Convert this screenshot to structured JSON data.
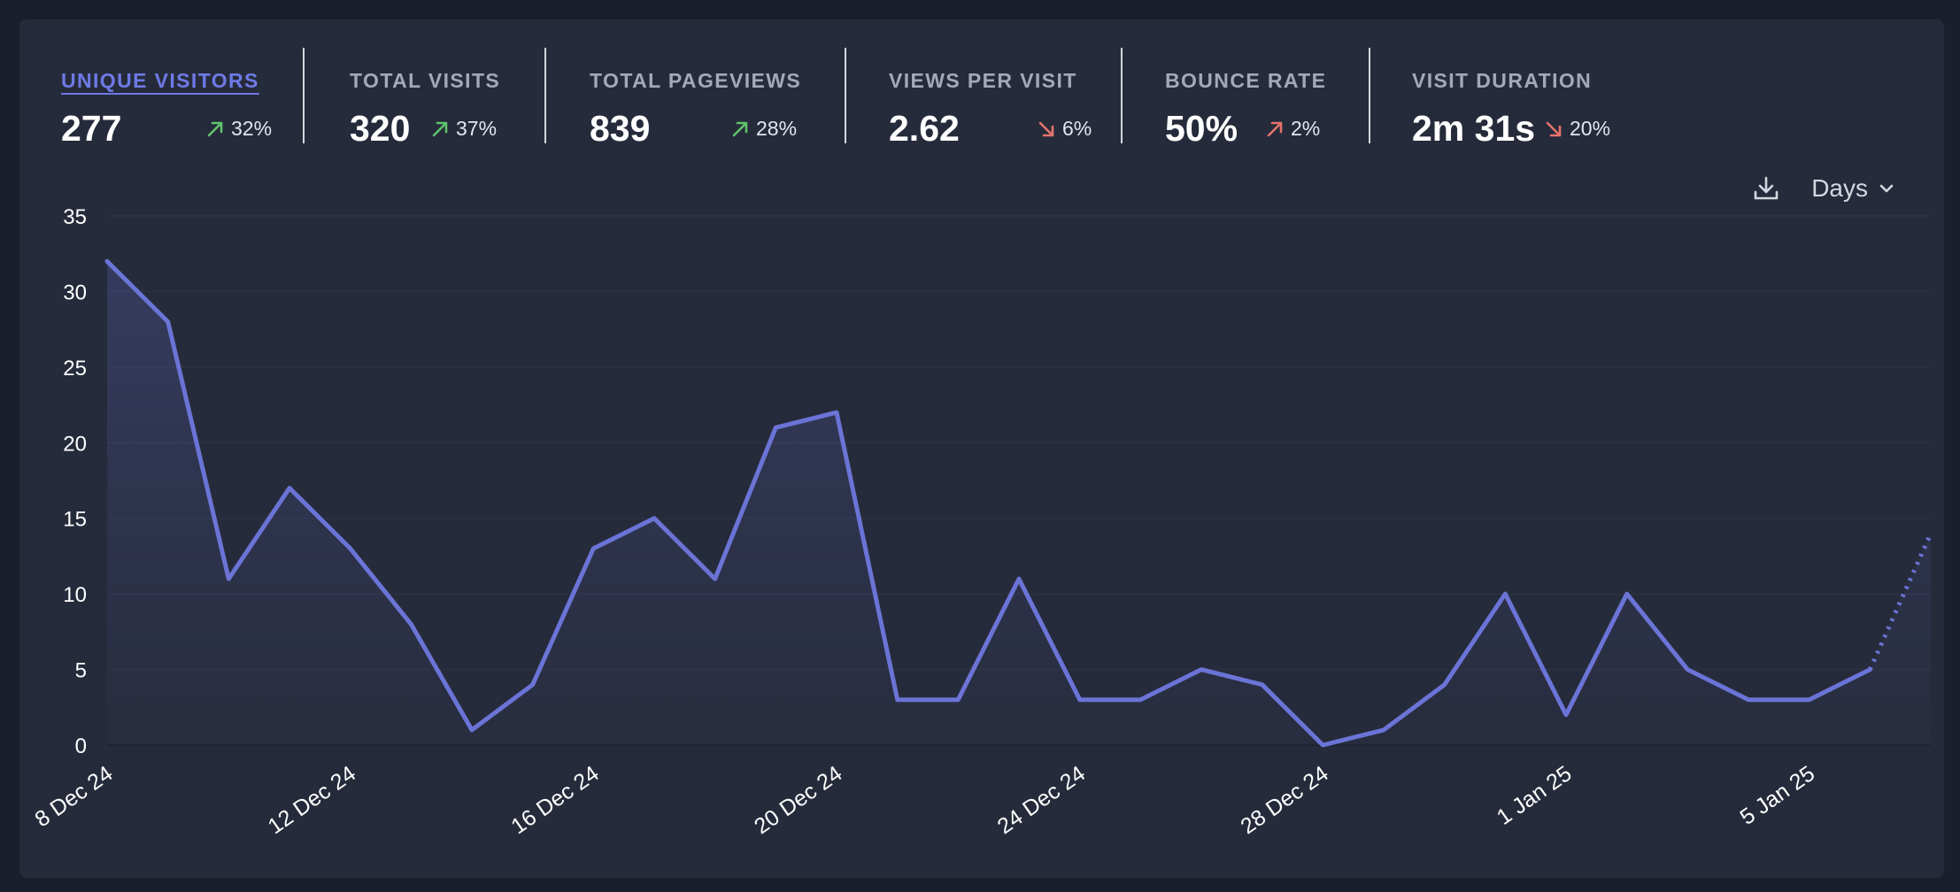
{
  "stats": [
    {
      "label": "UNIQUE VISITORS",
      "value": "277",
      "change": "32%",
      "direction": "up",
      "active": true
    },
    {
      "label": "TOTAL VISITS",
      "value": "320",
      "change": "37%",
      "direction": "up",
      "active": false
    },
    {
      "label": "TOTAL PAGEVIEWS",
      "value": "839",
      "change": "28%",
      "direction": "up",
      "active": false
    },
    {
      "label": "VIEWS PER VISIT",
      "value": "2.62",
      "change": "6%",
      "direction": "down",
      "active": false
    },
    {
      "label": "BOUNCE RATE",
      "value": "50%",
      "change": "2%",
      "direction": "up-bad",
      "active": false
    },
    {
      "label": "VISIT DURATION",
      "value": "2m 31s",
      "change": "20%",
      "direction": "down",
      "active": false
    }
  ],
  "colors": {
    "accent": "#6b74d6",
    "up": "#5fc36b",
    "down": "#e5736b",
    "panel": "#262b3b"
  },
  "controls": {
    "download_icon": "download-icon",
    "interval_label": "Days",
    "chevron_icon": "chevron-down-icon"
  },
  "chart_data": {
    "type": "line",
    "title": "",
    "xlabel": "",
    "ylabel": "",
    "ylim": [
      0,
      35
    ],
    "yticks": [
      0,
      5,
      10,
      15,
      20,
      25,
      30,
      35
    ],
    "grid": true,
    "x": [
      "8 Dec 24",
      "9 Dec 24",
      "10 Dec 24",
      "11 Dec 24",
      "12 Dec 24",
      "13 Dec 24",
      "14 Dec 24",
      "15 Dec 24",
      "16 Dec 24",
      "17 Dec 24",
      "18 Dec 24",
      "19 Dec 24",
      "20 Dec 24",
      "21 Dec 24",
      "22 Dec 24",
      "23 Dec 24",
      "24 Dec 24",
      "25 Dec 24",
      "26 Dec 24",
      "27 Dec 24",
      "28 Dec 24",
      "29 Dec 24",
      "30 Dec 24",
      "31 Dec 24",
      "1 Jan 25",
      "2 Jan 25",
      "3 Jan 25",
      "4 Jan 25",
      "5 Jan 25",
      "6 Jan 25",
      "7 Jan 25"
    ],
    "xtick_labels": [
      "8 Dec 24",
      "12 Dec 24",
      "16 Dec 24",
      "20 Dec 24",
      "24 Dec 24",
      "28 Dec 24",
      "1 Jan 25",
      "5 Jan 25"
    ],
    "series": [
      {
        "values": [
          32,
          28,
          11,
          17,
          13,
          8,
          1,
          4,
          13,
          15,
          11,
          21,
          22,
          3,
          3,
          11,
          3,
          3,
          5,
          4,
          0,
          1,
          4,
          10,
          2,
          10,
          5,
          3,
          3,
          5,
          14
        ],
        "incomplete_from_index": 29
      }
    ]
  }
}
